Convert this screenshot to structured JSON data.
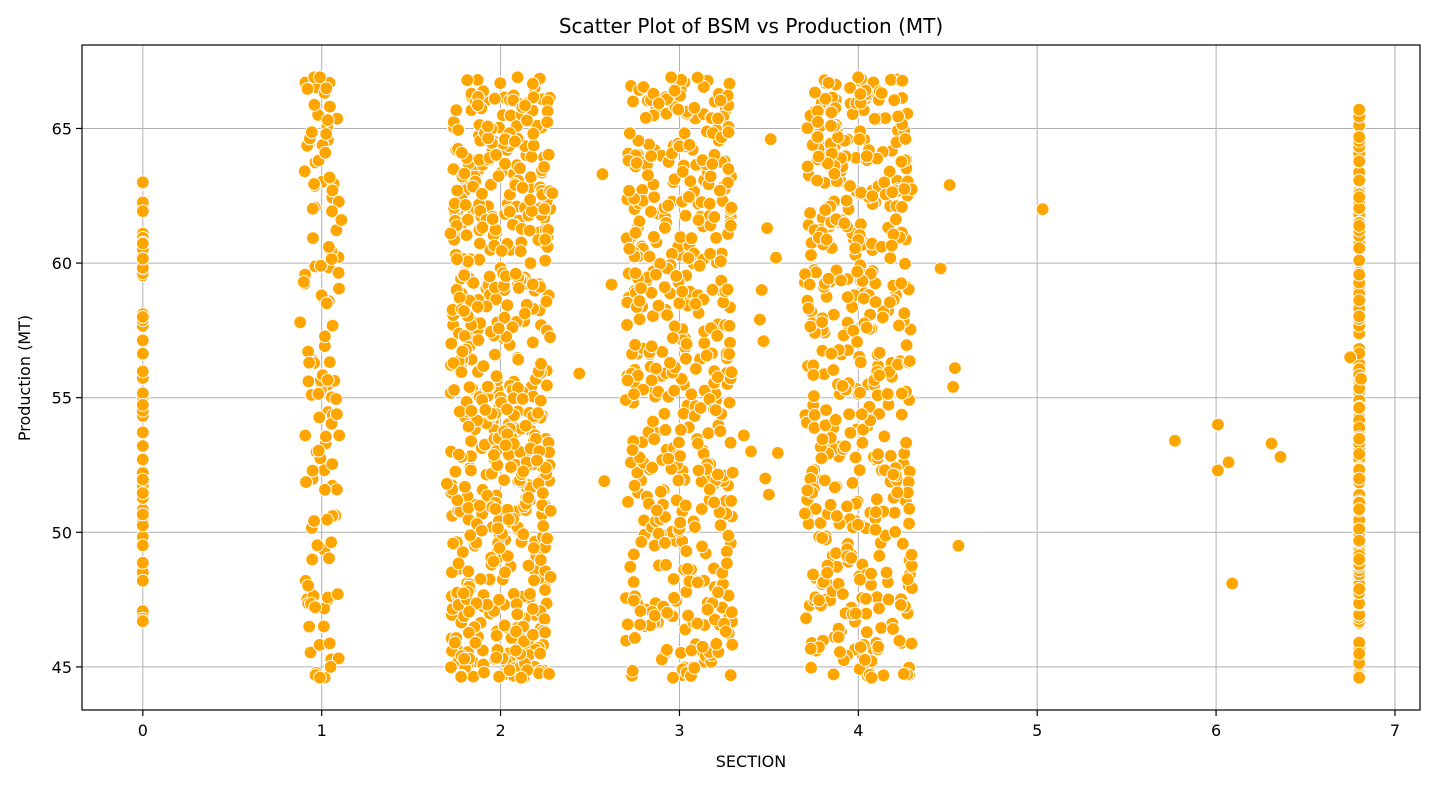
{
  "chart_data": {
    "type": "scatter",
    "title": "Scatter Plot of BSM vs Production (MT)",
    "xlabel": "SECTION",
    "ylabel": "Production (MT)",
    "xlim": [
      -0.34,
      7.14
    ],
    "ylim": [
      43.4,
      68.1
    ],
    "xticks": [
      0,
      1,
      2,
      3,
      4,
      5,
      6,
      7
    ],
    "yticks": [
      45,
      50,
      55,
      60,
      65
    ],
    "grid": true,
    "marker_color": "#ffa500",
    "marker_edge_color": "#ffffff",
    "clusters": [
      {
        "center": 0,
        "spread": 0.0,
        "count": 60,
        "ymin": 46.7,
        "ymax": 63.0
      },
      {
        "center": 1,
        "spread": 0.1,
        "count": 120,
        "ymin": 44.6,
        "ymax": 66.9
      },
      {
        "center": 2,
        "spread": 0.28,
        "count": 650,
        "ymin": 44.6,
        "ymax": 66.9
      },
      {
        "center": 3,
        "spread": 0.3,
        "count": 500,
        "ymin": 44.6,
        "ymax": 66.9
      },
      {
        "center": 4,
        "spread": 0.3,
        "count": 500,
        "ymin": 44.6,
        "ymax": 66.9
      },
      {
        "center": 6.8,
        "spread": 0.0,
        "count": 140,
        "ymin": 44.6,
        "ymax": 65.7
      }
    ],
    "points": [
      [
        5.03,
        62.0
      ],
      [
        5.77,
        53.4
      ],
      [
        6.01,
        54.0
      ],
      [
        6.01,
        52.3
      ],
      [
        6.07,
        52.6
      ],
      [
        6.09,
        48.1
      ],
      [
        6.31,
        53.3
      ],
      [
        6.36,
        52.8
      ],
      [
        3.48,
        52.0
      ],
      [
        3.55,
        52.95
      ],
      [
        3.4,
        53.0
      ],
      [
        3.54,
        60.2
      ],
      [
        3.51,
        64.6
      ],
      [
        3.49,
        61.3
      ],
      [
        4.51,
        62.9
      ],
      [
        4.56,
        49.5
      ],
      [
        4.54,
        56.1
      ],
      [
        4.53,
        55.4
      ],
      [
        4.46,
        59.8
      ],
      [
        3.36,
        53.6
      ],
      [
        3.45,
        57.9
      ],
      [
        3.46,
        59.0
      ],
      [
        3.47,
        57.1
      ],
      [
        3.5,
        51.4
      ],
      [
        2.44,
        55.9
      ],
      [
        2.57,
        63.3
      ],
      [
        2.58,
        51.9
      ],
      [
        2.62,
        59.2
      ],
      [
        2.29,
        62.6
      ],
      [
        2.28,
        50.8
      ],
      [
        1.7,
        51.8
      ],
      [
        1.72,
        61.1
      ],
      [
        0.93,
        56.3
      ],
      [
        0.88,
        57.8
      ],
      [
        0.9,
        59.3
      ],
      [
        1.11,
        61.6
      ],
      [
        1.09,
        47.7
      ],
      [
        1.05,
        45.0
      ],
      [
        1.06,
        62.7
      ],
      [
        1.02,
        64.1
      ],
      [
        0.99,
        66.9
      ],
      [
        0.99,
        44.6
      ],
      [
        6.75,
        56.5
      ],
      [
        6.81,
        55.7
      ]
    ]
  }
}
